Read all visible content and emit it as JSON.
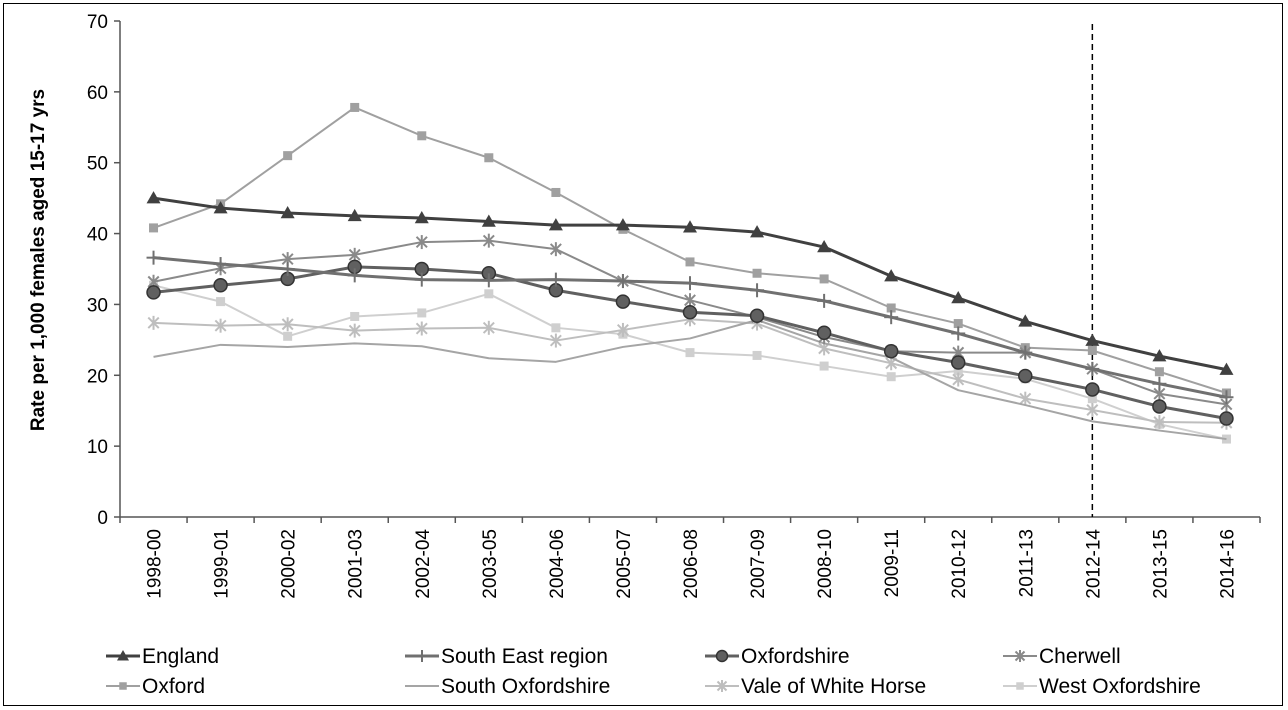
{
  "chart_data": {
    "type": "line",
    "title": "",
    "xlabel": "",
    "ylabel": "Rate per 1,000 females aged 15-17 yrs",
    "ylim": [
      0,
      70
    ],
    "yticks": [
      0,
      10,
      20,
      30,
      40,
      50,
      60,
      70
    ],
    "grid": false,
    "legend_position": "bottom",
    "reference_line": {
      "category": "2012-14",
      "style": "dashed"
    },
    "categories": [
      "1998-00",
      "1999-01",
      "2000-02",
      "2001-03",
      "2002-04",
      "2003-05",
      "2004-06",
      "2005-07",
      "2006-08",
      "2007-09",
      "2008-10",
      "2009-11",
      "2010-12",
      "2011-13",
      "2012-14",
      "2013-15",
      "2014-16"
    ],
    "series": [
      {
        "name": "England",
        "marker": "triangle",
        "color": "#404040",
        "width": 3,
        "values": [
          45.0,
          43.6,
          42.9,
          42.5,
          42.2,
          41.7,
          41.2,
          41.2,
          40.9,
          40.2,
          38.1,
          34.0,
          30.9,
          27.6,
          24.9,
          22.7,
          20.8
        ]
      },
      {
        "name": "South East region",
        "marker": "plus",
        "color": "#707070",
        "width": 3,
        "values": [
          36.6,
          35.7,
          35.0,
          34.1,
          33.5,
          33.4,
          33.5,
          33.3,
          33.0,
          32.0,
          30.5,
          28.2,
          25.9,
          23.2,
          20.9,
          18.8,
          16.9
        ]
      },
      {
        "name": "Oxfordshire",
        "marker": "circle",
        "color": "#606060",
        "width": 3,
        "values": [
          31.7,
          32.7,
          33.6,
          35.3,
          35.0,
          34.4,
          32.0,
          30.4,
          28.9,
          28.4,
          26.0,
          23.4,
          21.8,
          19.9,
          18.0,
          15.6,
          13.9
        ]
      },
      {
        "name": "Cherwell",
        "marker": "asterisk",
        "color": "#8a8a8a",
        "width": 2,
        "values": [
          33.2,
          35.1,
          36.4,
          37.0,
          38.8,
          39.0,
          37.8,
          33.3,
          30.6,
          28.2,
          25.4,
          23.4,
          23.2,
          23.2,
          20.9,
          17.4,
          15.9
        ]
      },
      {
        "name": "Oxford",
        "marker": "square",
        "color": "#a0a0a0",
        "width": 2,
        "values": [
          40.8,
          44.2,
          51.0,
          57.8,
          53.8,
          50.7,
          45.8,
          40.6,
          36.0,
          34.4,
          33.6,
          29.5,
          27.3,
          23.9,
          23.5,
          20.5,
          17.5
        ]
      },
      {
        "name": "South Oxfordshire",
        "marker": "none",
        "color": "#a5a5a5",
        "width": 2,
        "values": [
          22.6,
          24.3,
          24.0,
          24.5,
          24.1,
          22.4,
          21.9,
          24.0,
          25.2,
          27.8,
          24.5,
          22.5,
          17.9,
          15.8,
          13.5,
          12.2,
          11.0
        ]
      },
      {
        "name": "Vale of White Horse",
        "marker": "asterisk",
        "color": "#bebebe",
        "width": 2,
        "values": [
          27.4,
          27.0,
          27.2,
          26.3,
          26.6,
          26.7,
          24.9,
          26.4,
          27.9,
          27.3,
          23.8,
          21.7,
          19.4,
          16.7,
          15.1,
          13.4,
          13.3
        ]
      },
      {
        "name": "West Oxfordshire",
        "marker": "square",
        "color": "#cfcfcf",
        "width": 2,
        "values": [
          32.7,
          30.4,
          25.5,
          28.3,
          28.8,
          31.5,
          26.7,
          25.8,
          23.2,
          22.8,
          21.3,
          19.8,
          20.6,
          19.5,
          16.7,
          13.1,
          11.0
        ]
      }
    ]
  }
}
